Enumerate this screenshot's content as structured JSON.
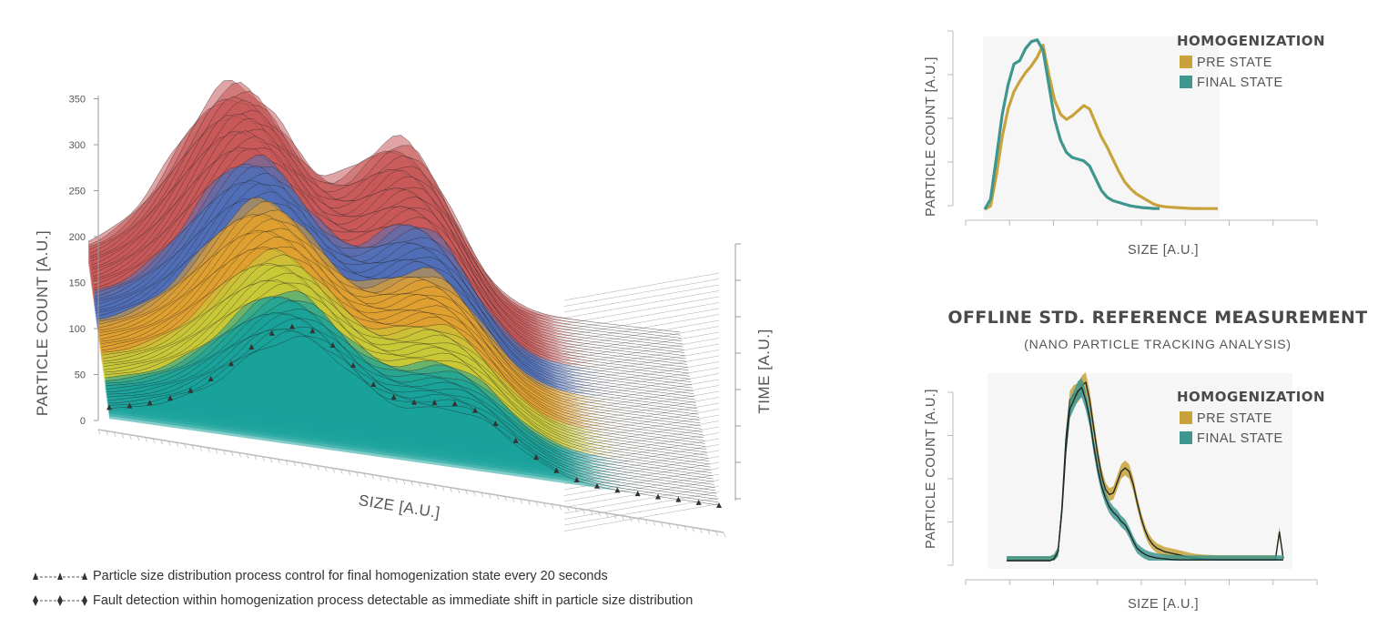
{
  "main_chart": {
    "y_axis_label": "PARTICLE COUNT [A.U.]",
    "x_axis_label": "SIZE [A.U.]",
    "z_axis_label": "TIME [A.U.]",
    "y_ticks": [
      "0",
      "50",
      "100",
      "150",
      "200",
      "250",
      "300",
      "350"
    ],
    "colors": {
      "teal": "#1aa39a",
      "yellow": "#c8c838",
      "orange": "#e0a030",
      "blue": "#5070b8",
      "red": "#c85a5a"
    }
  },
  "legend": [
    {
      "marker": "triangle-dash-line",
      "text": "Particle size distribution process control for final homogenization state every 20 seconds"
    },
    {
      "marker": "diamond-dash-line",
      "text": "Fault detection within homogenization process detectable as immediate shift in particle size distribution"
    }
  ],
  "reference": {
    "title": "OFFLINE STD. REFERENCE MEASUREMENT",
    "subtitle": "(NANO PARTICLE TRACKING ANALYSIS)"
  },
  "panels": [
    {
      "ylabel": "PARTICLE COUNT [A.U.]",
      "xlabel": "SIZE [A.U.]",
      "legend_title": "HOMOGENIZATION",
      "series_labels": [
        "PRE STATE",
        "FINAL STATE"
      ]
    },
    {
      "ylabel": "PARTICLE COUNT [A.U.]",
      "xlabel": "SIZE [A.U.]",
      "legend_title": "HOMOGENIZATION",
      "series_labels": [
        "PRE STATE",
        "FINAL STATE"
      ]
    }
  ],
  "chart_data": [
    {
      "type": "line",
      "name": "homogenization-online",
      "x": [
        0,
        1,
        2,
        3,
        4,
        5,
        6,
        7,
        8,
        9,
        10,
        11,
        12,
        13,
        14,
        15,
        16,
        17,
        18,
        19,
        20,
        21,
        22,
        23,
        24,
        25,
        26,
        27,
        28,
        29,
        30,
        31,
        32,
        33,
        34,
        35,
        36,
        37,
        38,
        39,
        40
      ],
      "series": [
        {
          "name": "PRE STATE",
          "color": "#c8a23a",
          "values": [
            0,
            0.02,
            0.2,
            0.42,
            0.58,
            0.68,
            0.74,
            0.79,
            0.83,
            0.88,
            0.95,
            0.78,
            0.63,
            0.55,
            0.52,
            0.54,
            0.57,
            0.6,
            0.58,
            0.5,
            0.42,
            0.36,
            0.29,
            0.22,
            0.16,
            0.12,
            0.09,
            0.07,
            0.05,
            0.03,
            0.02,
            0.015,
            0.012,
            0.01,
            0.008,
            0.006,
            0.005,
            0.005,
            0.004,
            0.004,
            0.004
          ]
        },
        {
          "name": "FINAL STATE",
          "color": "#3e968f",
          "values": [
            0,
            0.06,
            0.3,
            0.55,
            0.72,
            0.84,
            0.86,
            0.93,
            0.97,
            0.98,
            0.92,
            0.72,
            0.52,
            0.4,
            0.33,
            0.3,
            0.29,
            0.28,
            0.25,
            0.18,
            0.11,
            0.07,
            0.05,
            0.04,
            0.03,
            0.02,
            0.015,
            0.01,
            0.008,
            0.005,
            0.004,
            null,
            null,
            null,
            null,
            null,
            null,
            null,
            null,
            null,
            null
          ]
        }
      ]
    },
    {
      "type": "line",
      "name": "homogenization-reference",
      "x": [
        0,
        1,
        2,
        3,
        4,
        5,
        6,
        7,
        8,
        9,
        10,
        11,
        12,
        13,
        14,
        15,
        16,
        17,
        18,
        19,
        20,
        21,
        22,
        23,
        24,
        25,
        26,
        27,
        28,
        29,
        30,
        31,
        32,
        33,
        34,
        35,
        36,
        37,
        38,
        39,
        40,
        41,
        42,
        43,
        44,
        45,
        46,
        47,
        48,
        49,
        50,
        51,
        52,
        53,
        54,
        55,
        56,
        57,
        58,
        59,
        60,
        61,
        62,
        63,
        64,
        65,
        66,
        67,
        68,
        69,
        70
      ],
      "series": [
        {
          "name": "PRE STATE",
          "color": "#c8a23a",
          "values": [
            0,
            0,
            0,
            0,
            0,
            0,
            0,
            0,
            0,
            0,
            0,
            0,
            0.01,
            0.05,
            0.3,
            0.68,
            0.9,
            0.93,
            0.94,
            0.98,
            1.0,
            0.9,
            0.75,
            0.6,
            0.48,
            0.4,
            0.37,
            0.38,
            0.44,
            0.5,
            0.52,
            0.5,
            0.43,
            0.33,
            0.24,
            0.17,
            0.12,
            0.09,
            0.07,
            0.06,
            0.05,
            0.045,
            0.04,
            0.035,
            0.03,
            0.025,
            0.02,
            0.015,
            0.012,
            0.01,
            0.008,
            0.007,
            0.006,
            0.005,
            0.005,
            0.005,
            0.005,
            0.005,
            0.005,
            0.005,
            0.005,
            0.005,
            0.005,
            0.005,
            0.005,
            0.005,
            0.005,
            0.005,
            0.005,
            0.16,
            0.01
          ]
        },
        {
          "name": "FINAL STATE",
          "color": "#3e968f",
          "values": [
            0,
            0,
            0,
            0,
            0,
            0,
            0,
            0,
            0,
            0,
            0,
            0,
            0.01,
            0.05,
            0.28,
            0.62,
            0.85,
            0.9,
            0.95,
            0.97,
            0.9,
            0.8,
            0.65,
            0.52,
            0.42,
            0.35,
            0.3,
            0.27,
            0.25,
            0.22,
            0.2,
            0.16,
            0.11,
            0.07,
            0.05,
            0.035,
            0.025,
            0.02,
            0.015,
            0.012,
            0.01,
            0.008,
            0.006,
            0.005,
            0.004,
            0.004,
            0.004,
            0.004,
            0.004,
            0.004,
            0.004,
            0.004,
            0.004,
            0.004,
            0.004,
            0.004,
            0.004,
            0.004,
            0.004,
            0.004,
            0.004,
            0.004,
            0.004,
            0.004,
            0.004,
            0.004,
            0.004,
            0.004,
            0.004,
            0.004,
            0.004
          ]
        }
      ]
    }
  ]
}
